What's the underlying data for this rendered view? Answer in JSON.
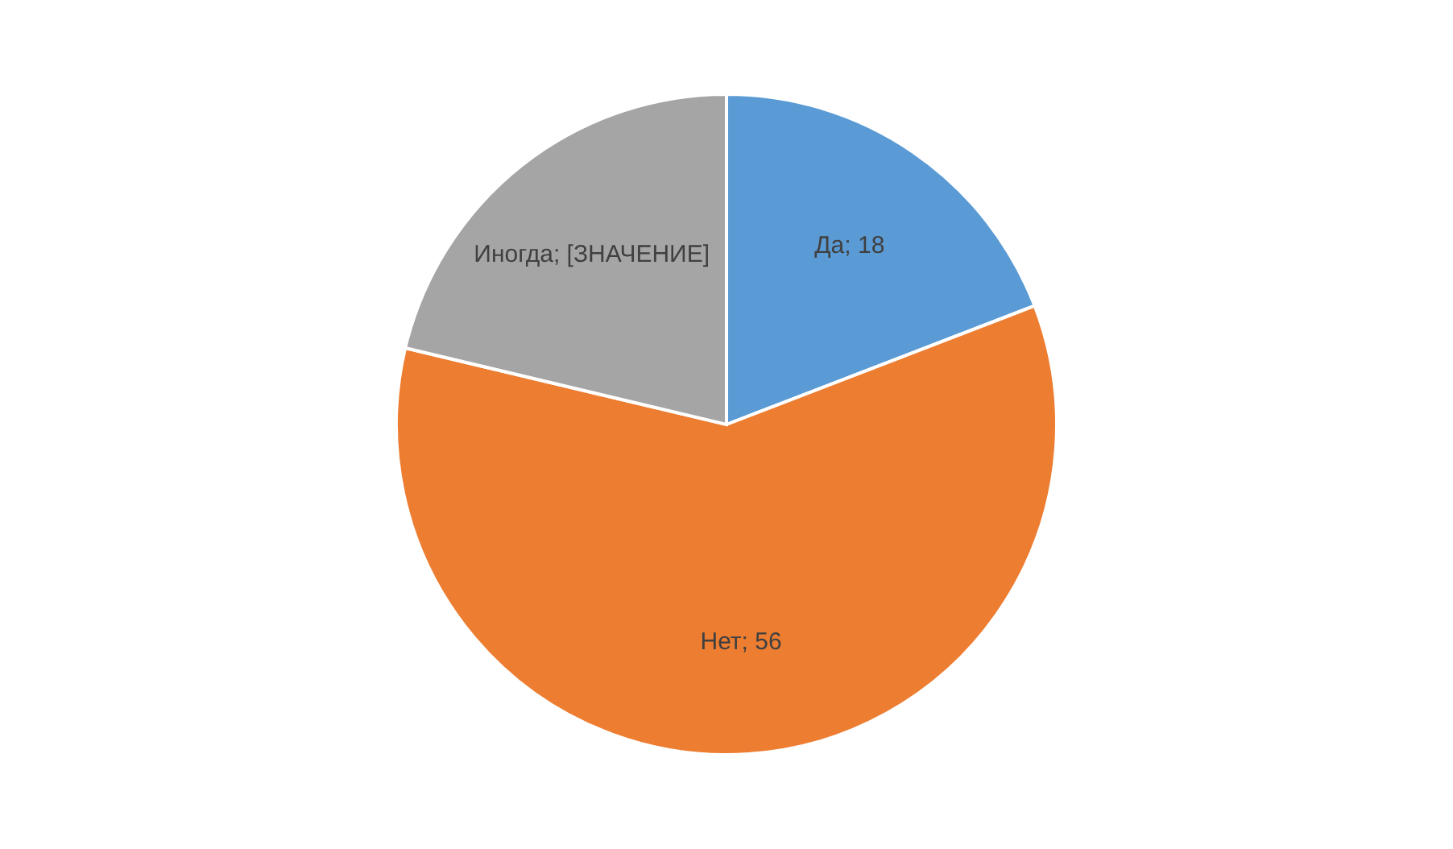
{
  "chart_data": {
    "type": "pie",
    "categories": [
      "Да",
      "Нет",
      "Иногда"
    ],
    "values": [
      18,
      56,
      20
    ],
    "colors": [
      "#5b9bd5",
      "#ed7d31",
      "#a5a5a5"
    ],
    "value_labels": [
      "18",
      "56",
      "[ЗНАЧЕНИЕ]"
    ],
    "legend": false
  }
}
